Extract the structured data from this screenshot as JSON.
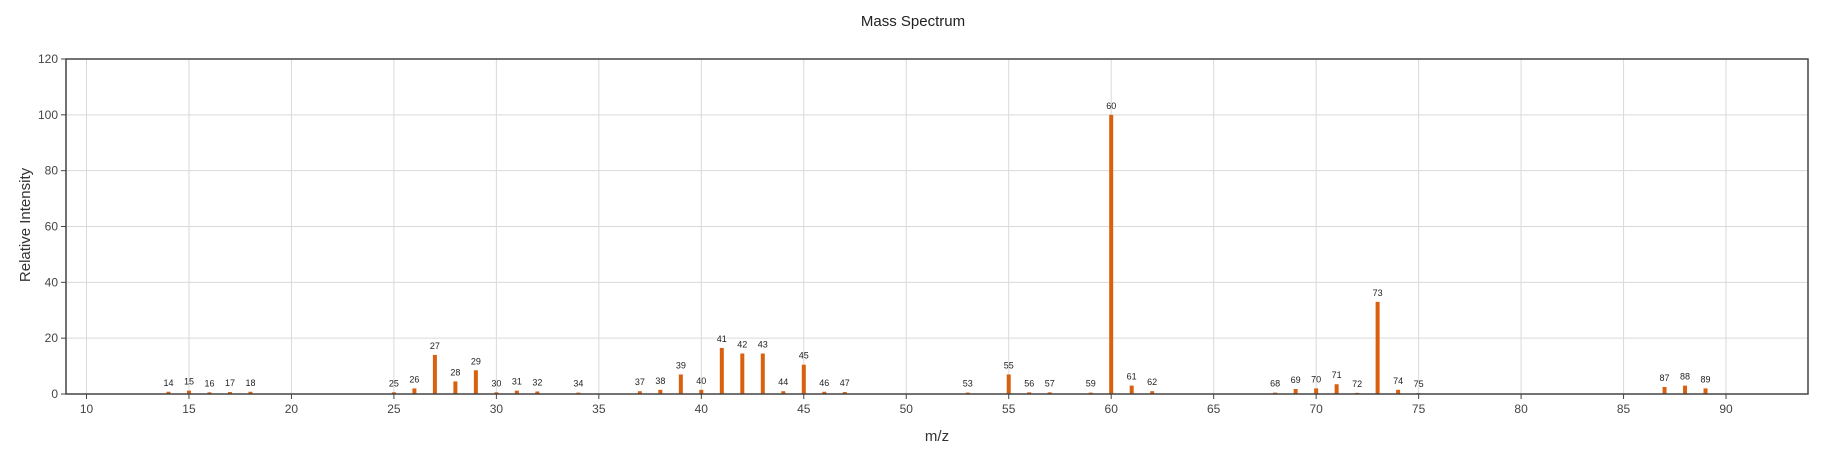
{
  "chart_data": {
    "type": "bar",
    "title": "Mass Spectrum",
    "xlabel": "m/z",
    "ylabel": "Relative Intensity",
    "xlim": [
      9,
      94
    ],
    "ylim": [
      0,
      120
    ],
    "x_ticks": [
      10,
      15,
      20,
      25,
      30,
      35,
      40,
      45,
      50,
      55,
      60,
      65,
      70,
      75,
      80,
      85,
      90
    ],
    "y_ticks": [
      0,
      20,
      40,
      60,
      80,
      100,
      120
    ],
    "grid": true,
    "bar_color": "#d9600f",
    "x": [
      14,
      15,
      16,
      17,
      18,
      25,
      26,
      27,
      28,
      29,
      30,
      31,
      32,
      34,
      37,
      38,
      39,
      40,
      41,
      42,
      43,
      44,
      45,
      46,
      47,
      53,
      55,
      56,
      57,
      59,
      60,
      61,
      62,
      68,
      69,
      70,
      71,
      72,
      73,
      74,
      75,
      87,
      88,
      89
    ],
    "values": [
      0.8,
      1.2,
      0.6,
      0.7,
      0.8,
      0.6,
      2.0,
      14.0,
      4.5,
      8.5,
      0.6,
      1.2,
      0.9,
      0.5,
      1.0,
      1.5,
      7.0,
      1.5,
      16.5,
      14.5,
      14.5,
      1.0,
      10.5,
      0.8,
      0.7,
      0.5,
      7.0,
      0.6,
      0.6,
      0.5,
      100.0,
      3.0,
      1.0,
      0.5,
      1.8,
      2.0,
      3.5,
      0.4,
      33.0,
      1.5,
      0.3,
      2.5,
      3.0,
      2.0
    ]
  }
}
